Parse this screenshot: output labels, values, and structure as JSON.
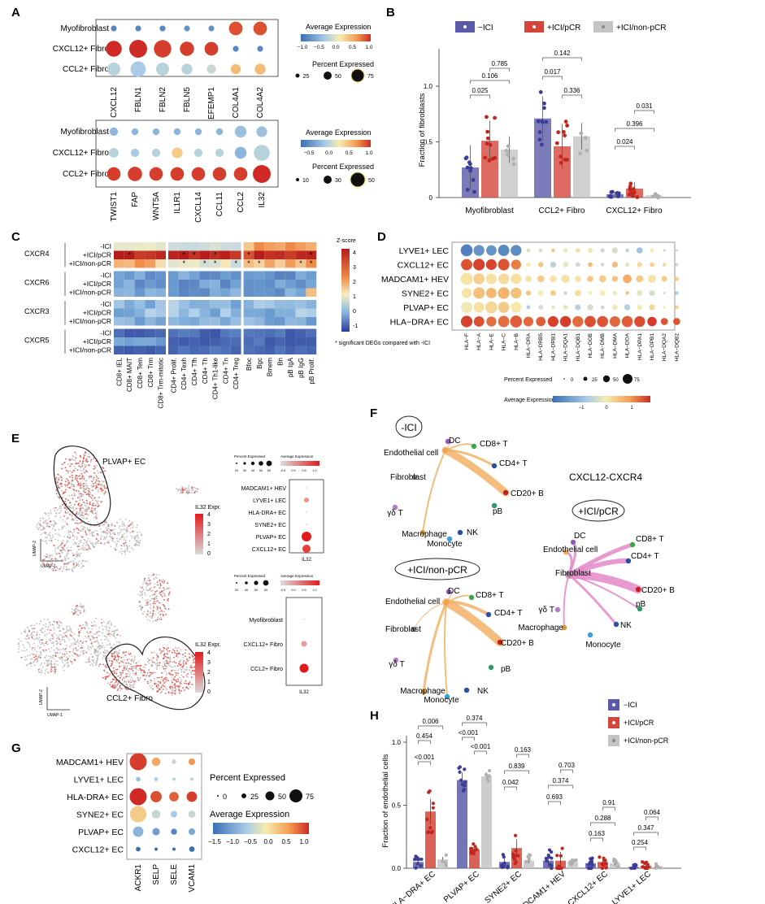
{
  "panels": {
    "A": {
      "label": "A",
      "top": {
        "rows": [
          "Myofibroblast",
          "CXCL12+ Fibro",
          "CCL2+ Fibro"
        ],
        "genes": [
          "CXCL12",
          "FBLN1",
          "FBLN2",
          "FBLN5",
          "EFEMP1",
          "COL4A1",
          "COL4A2"
        ],
        "legend_title_color": "Average Expression",
        "color_ticks": [
          "−1.0",
          "−0.5",
          "0.0",
          "0.5",
          "1.0"
        ],
        "legend_title_size": "Percent Expressed",
        "size_ticks": [
          "25",
          "50",
          "75"
        ],
        "pct": [
          [
            10,
            10,
            10,
            10,
            10,
            55,
            55
          ],
          [
            75,
            95,
            90,
            60,
            55,
            10,
            10
          ],
          [
            50,
            70,
            50,
            35,
            25,
            30,
            35
          ]
        ],
        "expr": [
          [
            -1,
            -1,
            -1,
            -0.9,
            -0.9,
            1.0,
            1.0
          ],
          [
            1.2,
            1.2,
            1.1,
            1.1,
            1.1,
            -1.0,
            -1.0
          ],
          [
            -0.3,
            -0.4,
            -0.3,
            -0.3,
            -0.2,
            0.4,
            0.4
          ]
        ]
      },
      "bottom": {
        "rows": [
          "Myofibroblast",
          "CXCL12+ Fibro",
          "CCL2+ Fibro"
        ],
        "genes": [
          "TWIST1",
          "FAP",
          "WNT5A",
          "IL1R1",
          "CXCL14",
          "CCL11",
          "CCL2",
          "IL32"
        ],
        "legend_title_color": "Average Expression",
        "color_ticks": [
          "−0.5",
          "0.0",
          "0.5",
          "1.0"
        ],
        "legend_title_size": "Percent Expressed",
        "size_ticks": [
          "10",
          "30",
          "50"
        ],
        "pct": [
          [
            15,
            10,
            10,
            10,
            10,
            10,
            30,
            25
          ],
          [
            20,
            15,
            15,
            25,
            15,
            15,
            30,
            55
          ],
          [
            40,
            45,
            40,
            40,
            40,
            40,
            40,
            70
          ]
        ],
        "expr": [
          [
            -0.6,
            -0.6,
            -0.6,
            -0.6,
            -0.6,
            -0.6,
            -0.5,
            -0.5
          ],
          [
            -0.3,
            -0.4,
            -0.3,
            0.3,
            -0.3,
            -0.3,
            -0.6,
            -0.3
          ],
          [
            1.1,
            1.1,
            1.1,
            1.1,
            1.1,
            1.1,
            1.1,
            1.2
          ]
        ]
      }
    },
    "B": {
      "label": "B",
      "legend": [
        "−ICI",
        "+ICI/pCR",
        "+ICI/non-pCR"
      ],
      "ylabel": "Fraction of fibroblasts",
      "yticks": [
        "0",
        "0.5",
        "1.0"
      ],
      "categories": [
        "Myofibroblast",
        "CCL2+ Fibro",
        "CXCL12+ Fibro"
      ],
      "pvalues": [
        "0.785",
        "0.106",
        "0.025",
        "0.142",
        "0.017",
        "0.336",
        "0.031",
        "0.396",
        "0.024"
      ]
    },
    "C": {
      "label": "C",
      "groups": [
        "CXCR4",
        "CXCR6",
        "CXCR3",
        "CXCR5"
      ],
      "conditions": [
        "-ICI",
        "+ICI/pCR",
        "+ICI/non-pCR"
      ],
      "columns": [
        "CD8+ IEL",
        "CD8+ MAIT",
        "CD8+ Tem",
        "CD8+ Trm",
        "CD8+ Trm-mitotic",
        "CD4+ Prolif.",
        "CD4+ Texh",
        "CD4+ Tfh",
        "CD4+ Th",
        "CD4+ Th1-like",
        "CD4+ Tn",
        "CD4+ Treg",
        "Bfoc",
        "Bgc",
        "Bmem",
        "Bn",
        "pB IgA",
        "pB IgG",
        "pB Prolif."
      ],
      "zscore_title": "Z-score",
      "zscore_ticks": [
        "4",
        "3",
        "2",
        "1",
        "0",
        "-1"
      ],
      "note": "* significant DEGs compared with -ICI"
    },
    "D": {
      "label": "D",
      "rows": [
        "LYVE1+ LEC",
        "CXCL12+ EC",
        "MADCAM1+ HEV",
        "SYNE2+ EC",
        "PLVAP+ EC",
        "HLA−DRA+ EC"
      ],
      "genes": [
        "HLA−F",
        "HLA−A",
        "HLA−E",
        "HLA−C",
        "HLA−B",
        "HLA−DRA",
        "HLA−DRB5",
        "HLA−DRB1",
        "HLA−DQA1",
        "HLA−DQB1",
        "HLA−DOB",
        "HLA−DMB",
        "HLA−DMA",
        "HLA−DOA",
        "HLA−DPA1",
        "HLA−DPB1",
        "HLA−DQA2",
        "HLA−DQB2"
      ],
      "size_title": "Percent Expressed",
      "size_ticks": [
        "0",
        "25",
        "50",
        "75"
      ],
      "color_title": "Average Expression",
      "color_ticks": [
        "−1",
        "0",
        "1"
      ]
    },
    "E": {
      "label": "E",
      "umap_top_label": "PLVAP+ EC",
      "umap_bottom_label": "CCL2+ Fibro",
      "colorbar_title": "IL32 Expr.",
      "colorbar_ticks_top": [
        "4",
        "3",
        "2",
        "1",
        "0"
      ],
      "colorbar_ticks_bottom": [
        "4",
        "3",
        "2",
        "1",
        "0"
      ],
      "axis_x": "UMAP-1",
      "axis_y": "UMAP-2",
      "dot_top_rows": [
        "MADCAM1+ HEV",
        "LYVE1+ LEC",
        "HLA-DRA+ EC",
        "SYNE2+ EC",
        "PLVAP+ EC",
        "CXCL12+ EC"
      ],
      "dot_bottom_rows": [
        "Myofibroblast",
        "CXCL12+ Fibro",
        "CCL2+ Fibro"
      ],
      "dot_gene": "IL32",
      "pct_title": "Percent Expressed",
      "avg_title": "Average Expression",
      "pct_ticks_top": [
        "20",
        "30",
        "40",
        "50",
        "60"
      ],
      "avg_ticks_top": [
        "-0.5",
        "0.0",
        "0.5",
        "1.0"
      ],
      "pct_ticks_bottom": [
        "20",
        "40",
        "60",
        "80"
      ],
      "avg_ticks_bottom": [
        "-0.5",
        "0.0",
        "0.5",
        "1.0"
      ]
    },
    "F": {
      "label": "F",
      "title": "CXCL12-CXCR4",
      "conditions": [
        "-ICI",
        "+ICI/pCR",
        "+ICI/non-pCR"
      ],
      "nodes": [
        "DC",
        "CD8+ T",
        "CD4+ T",
        "CD20+ B",
        "pB",
        "NK",
        "Monocyte",
        "Macrophage",
        "γδ T",
        "Fibroblast",
        "Endothelial cell"
      ]
    },
    "G": {
      "label": "G",
      "rows": [
        "MADCAM1+ HEV",
        "LYVE1+ LEC",
        "HLA-DRA+ EC",
        "SYNE2+ EC",
        "PLVAP+ EC",
        "CXCL12+ EC"
      ],
      "genes": [
        "ACKR1",
        "SELP",
        "SELE",
        "VCAM1"
      ],
      "size_title": "Percent Expressed",
      "size_ticks": [
        "0",
        "25",
        "50",
        "75"
      ],
      "color_title": "Average Expression",
      "color_ticks": [
        "−1.5",
        "−1.0",
        "−0.5",
        "0.0",
        "0.5",
        "1.0"
      ]
    },
    "H": {
      "label": "H",
      "legend": [
        "−ICI",
        "+ICI/pCR",
        "+ICI/non-pCR"
      ],
      "ylabel": "Fraction of endothelial cells",
      "yticks": [
        "0.0",
        "0.5",
        "1.0"
      ],
      "categories": [
        "HLA−DRA+ EC",
        "PLVAP+ EC",
        "SYNE2+ EC",
        "MADCAM1+ HEV",
        "CXCL12+ EC",
        "LYVE1+ LEC"
      ],
      "pvalues": [
        "0.006",
        "0.454",
        "<0.001",
        "0.374",
        "<0.001",
        "<0.001",
        "0.163",
        "0.839",
        "0.042",
        "0.703",
        "0.374",
        "0.693",
        "0.91",
        "0.288",
        "0.163",
        "0.064",
        "0.347",
        "0.254"
      ]
    }
  },
  "colors": {
    "neg_ici": "#5a5aa8",
    "pcr": "#d4463a",
    "nonpcr": "#c4c4c4",
    "orange_edge": "#f2b266",
    "pink_edge": "#e488c8"
  }
}
